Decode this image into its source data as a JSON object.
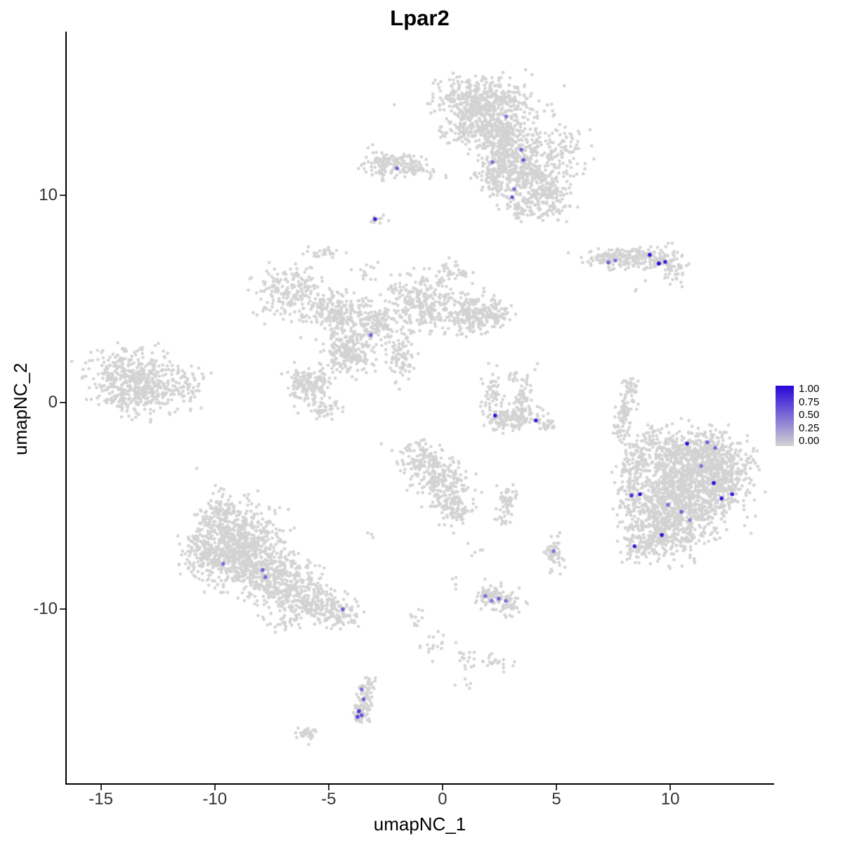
{
  "chart_data": {
    "type": "scatter",
    "title": "Lpar2",
    "xlabel": "umapNC_1",
    "ylabel": "umapNC_2",
    "xlim": [
      -16.5,
      14.5
    ],
    "ylim": [
      -18.4,
      17.9
    ],
    "x_ticks": [
      -15,
      -10,
      -5,
      0,
      5,
      10
    ],
    "y_ticks": [
      10,
      0,
      -10
    ],
    "grid": false,
    "point_color_low": "#d3d3d3",
    "point_color_high": "#2606d9",
    "legend": {
      "position": "right",
      "labels": [
        "1.00",
        "0.75",
        "0.50",
        "0.25",
        "0.00"
      ],
      "gradient_low": "#d3d3d3",
      "gradient_high": "#2606d9"
    },
    "background_clusters_format": [
      "center_x",
      "center_y",
      "sd_x",
      "sd_y",
      "n_points"
    ],
    "background_clusters": [
      [
        1.8,
        14.6,
        1.0,
        0.55,
        420
      ],
      [
        1.2,
        13.3,
        0.55,
        0.5,
        150
      ],
      [
        2.6,
        13.2,
        0.7,
        0.6,
        250
      ],
      [
        3.1,
        12.0,
        0.7,
        0.6,
        250
      ],
      [
        3.7,
        10.9,
        0.8,
        0.6,
        250
      ],
      [
        4.5,
        9.9,
        0.6,
        0.45,
        150
      ],
      [
        2.3,
        10.9,
        0.4,
        0.5,
        80
      ],
      [
        5.3,
        12.2,
        0.5,
        0.7,
        90
      ],
      [
        3.3,
        9.3,
        0.4,
        0.3,
        40
      ],
      [
        -2.3,
        11.5,
        0.65,
        0.3,
        130
      ],
      [
        -1.2,
        11.3,
        0.3,
        0.2,
        30
      ],
      [
        -0.3,
        11.1,
        0.3,
        0.15,
        8
      ],
      [
        -2.95,
        8.8,
        0.18,
        0.12,
        14
      ],
      [
        7.3,
        6.9,
        0.6,
        0.22,
        90
      ],
      [
        8.6,
        7.0,
        0.6,
        0.25,
        110
      ],
      [
        9.7,
        6.8,
        0.5,
        0.3,
        70
      ],
      [
        10.2,
        6.2,
        0.25,
        0.3,
        25
      ],
      [
        8.5,
        5.3,
        0.1,
        0.1,
        2
      ],
      [
        -6.6,
        5.3,
        0.75,
        0.6,
        200
      ],
      [
        -5.1,
        7.25,
        0.35,
        0.15,
        25
      ],
      [
        -4.5,
        4.3,
        0.7,
        0.5,
        220
      ],
      [
        -4.2,
        2.4,
        0.55,
        0.55,
        220
      ],
      [
        -5.9,
        0.9,
        0.5,
        0.45,
        160
      ],
      [
        -5.2,
        -0.3,
        0.4,
        0.25,
        40
      ],
      [
        -1.9,
        2.2,
        0.35,
        0.55,
        90
      ],
      [
        -2.8,
        3.8,
        0.4,
        0.4,
        110
      ],
      [
        -1.0,
        4.8,
        0.7,
        0.65,
        260
      ],
      [
        1.2,
        4.3,
        0.6,
        0.5,
        220
      ],
      [
        2.4,
        4.3,
        0.3,
        0.35,
        50
      ],
      [
        0.3,
        6.3,
        0.4,
        0.3,
        40
      ],
      [
        -3.3,
        6.4,
        0.4,
        0.3,
        15
      ],
      [
        -13.9,
        1.5,
        0.8,
        0.55,
        220
      ],
      [
        -12.8,
        0.7,
        0.9,
        0.6,
        220
      ],
      [
        -13.9,
        0.2,
        0.6,
        0.4,
        100
      ],
      [
        -11.2,
        0.9,
        0.4,
        0.4,
        50
      ],
      [
        2.15,
        0.3,
        0.22,
        0.55,
        60
      ],
      [
        2.7,
        -0.85,
        0.35,
        0.25,
        80
      ],
      [
        3.4,
        -0.6,
        0.3,
        0.3,
        60
      ],
      [
        3.6,
        0.3,
        0.2,
        0.35,
        35
      ],
      [
        3.35,
        1.25,
        0.25,
        0.2,
        18
      ],
      [
        4.45,
        -0.95,
        0.25,
        0.3,
        35
      ],
      [
        8.25,
        0.6,
        0.18,
        0.35,
        40
      ],
      [
        7.95,
        -0.4,
        0.15,
        0.4,
        40
      ],
      [
        7.8,
        -1.3,
        0.18,
        0.3,
        30
      ],
      [
        11.2,
        -2.4,
        0.9,
        0.6,
        350
      ],
      [
        12.2,
        -3.4,
        0.8,
        0.7,
        300
      ],
      [
        10.3,
        -3.6,
        0.9,
        0.7,
        350
      ],
      [
        11.3,
        -4.8,
        0.9,
        0.7,
        350
      ],
      [
        9.4,
        -5.0,
        0.7,
        0.7,
        250
      ],
      [
        10.2,
        -6.3,
        0.8,
        0.6,
        250
      ],
      [
        8.8,
        -6.7,
        0.5,
        0.5,
        120
      ],
      [
        8.2,
        -3.9,
        0.3,
        0.9,
        100
      ],
      [
        8.6,
        -2.6,
        0.3,
        0.5,
        60
      ],
      [
        9.3,
        -1.7,
        0.4,
        0.3,
        40
      ],
      [
        -0.9,
        -2.7,
        0.5,
        0.45,
        120
      ],
      [
        -0.1,
        -3.9,
        0.55,
        0.6,
        180
      ],
      [
        0.5,
        -5.1,
        0.4,
        0.45,
        90
      ],
      [
        2.85,
        -4.75,
        0.22,
        0.3,
        50
      ],
      [
        2.6,
        -5.7,
        0.15,
        0.15,
        12
      ],
      [
        -9.7,
        -5.5,
        0.6,
        0.6,
        150
      ],
      [
        -8.7,
        -6.5,
        0.8,
        0.7,
        300
      ],
      [
        -9.8,
        -7.5,
        0.7,
        0.6,
        250
      ],
      [
        -8.0,
        -8.0,
        0.9,
        0.7,
        350
      ],
      [
        -6.7,
        -9.0,
        0.8,
        0.6,
        250
      ],
      [
        -5.5,
        -9.8,
        0.6,
        0.4,
        150
      ],
      [
        -4.4,
        -10.2,
        0.4,
        0.3,
        70
      ],
      [
        -10.6,
        -6.9,
        0.4,
        0.5,
        80
      ],
      [
        -7.0,
        -10.6,
        0.5,
        0.25,
        25
      ],
      [
        4.9,
        -7.3,
        0.2,
        0.4,
        55
      ],
      [
        2.0,
        -9.3,
        0.35,
        0.3,
        60
      ],
      [
        2.8,
        -9.7,
        0.35,
        0.3,
        55
      ],
      [
        -1.2,
        -10.7,
        0.2,
        0.3,
        12
      ],
      [
        -0.3,
        -11.7,
        0.35,
        0.3,
        18
      ],
      [
        1.1,
        -12.3,
        0.3,
        0.25,
        15
      ],
      [
        2.4,
        -12.5,
        0.35,
        0.25,
        20
      ],
      [
        0.9,
        -13.6,
        0.2,
        0.15,
        5
      ],
      [
        -3.3,
        -13.9,
        0.22,
        0.35,
        45
      ],
      [
        -3.55,
        -14.9,
        0.2,
        0.4,
        45
      ],
      [
        -5.9,
        -16.0,
        0.25,
        0.18,
        28
      ],
      [
        -3.1,
        -6.4,
        0.15,
        0.15,
        3
      ],
      [
        1.6,
        -7.3,
        0.2,
        0.15,
        4
      ],
      [
        0.6,
        -8.7,
        0.15,
        0.15,
        3
      ]
    ],
    "expressing_cells_format": [
      "x",
      "y",
      "expression_0_to_1"
    ],
    "expressing_cells": [
      [
        2.8,
        13.8,
        0.45
      ],
      [
        3.46,
        12.2,
        0.55
      ],
      [
        3.55,
        11.7,
        0.6
      ],
      [
        2.19,
        11.6,
        0.5
      ],
      [
        -2.0,
        11.3,
        0.55
      ],
      [
        3.15,
        10.3,
        0.5
      ],
      [
        3.06,
        9.9,
        0.6
      ],
      [
        -2.96,
        8.85,
        0.9
      ],
      [
        7.28,
        6.75,
        0.55
      ],
      [
        7.59,
        6.85,
        0.5
      ],
      [
        9.1,
        7.12,
        0.95
      ],
      [
        9.5,
        6.7,
        1.0
      ],
      [
        9.78,
        6.78,
        0.85
      ],
      [
        -3.15,
        3.25,
        0.55
      ],
      [
        2.31,
        -0.64,
        0.95
      ],
      [
        4.1,
        -0.88,
        0.9
      ],
      [
        10.74,
        -2.0,
        0.95
      ],
      [
        11.63,
        -1.93,
        0.55
      ],
      [
        11.97,
        -2.2,
        0.5
      ],
      [
        11.36,
        -3.08,
        0.45
      ],
      [
        11.91,
        -3.9,
        0.95
      ],
      [
        12.72,
        -4.44,
        0.9
      ],
      [
        12.25,
        -4.64,
        0.9
      ],
      [
        8.67,
        -4.44,
        0.95
      ],
      [
        8.3,
        -4.5,
        0.8
      ],
      [
        9.9,
        -4.95,
        0.5
      ],
      [
        10.49,
        -5.29,
        0.55
      ],
      [
        10.86,
        -5.69,
        0.4
      ],
      [
        9.63,
        -6.41,
        0.95
      ],
      [
        8.43,
        -6.95,
        0.9
      ],
      [
        -9.63,
        -7.8,
        0.5
      ],
      [
        -7.9,
        -8.1,
        0.55
      ],
      [
        -7.78,
        -8.44,
        0.5
      ],
      [
        -4.38,
        -10.0,
        0.55
      ],
      [
        1.88,
        -9.36,
        0.5
      ],
      [
        2.16,
        -9.59,
        0.45
      ],
      [
        2.47,
        -9.49,
        0.55
      ],
      [
        2.78,
        -9.59,
        0.5
      ],
      [
        4.88,
        -7.19,
        0.45
      ],
      [
        -3.55,
        -13.86,
        0.5
      ],
      [
        -3.46,
        -14.34,
        0.55
      ],
      [
        -3.67,
        -14.92,
        0.75
      ],
      [
        -3.55,
        -15.12,
        0.65
      ],
      [
        -3.73,
        -15.19,
        0.7
      ]
    ]
  }
}
